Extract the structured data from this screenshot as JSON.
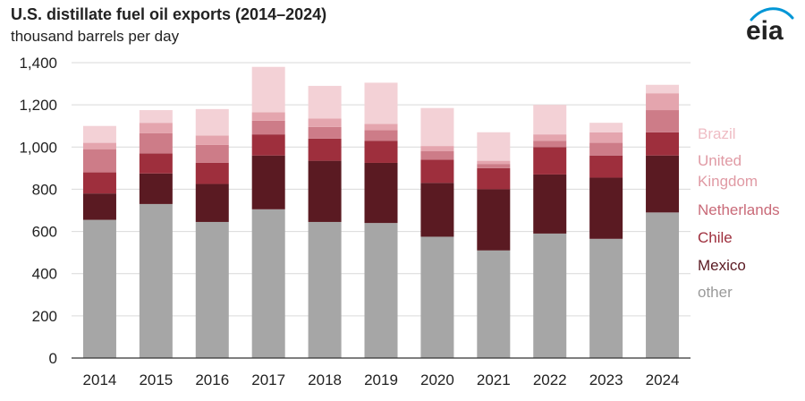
{
  "header": {
    "title": "U.S. distillate fuel oil exports (2014–2024)",
    "subtitle": "thousand barrels per day",
    "logo_text": "eia"
  },
  "chart_data": {
    "type": "bar",
    "stacked": true,
    "title": "U.S. distillate fuel oil exports (2014–2024)",
    "ylabel": "thousand barrels per day",
    "xlabel": "",
    "ylim": [
      0,
      1400
    ],
    "yticks": [
      0,
      200,
      400,
      600,
      800,
      1000,
      1200,
      1400
    ],
    "ytick_labels": [
      "0",
      "200",
      "400",
      "600",
      "800",
      "1,000",
      "1,200",
      "1,400"
    ],
    "categories": [
      "2014",
      "2015",
      "2016",
      "2017",
      "2018",
      "2019",
      "2020",
      "2021",
      "2022",
      "2023",
      "2024"
    ],
    "series": [
      {
        "name": "other",
        "color": "#a6a6a6",
        "values": [
          655,
          730,
          645,
          705,
          645,
          640,
          575,
          510,
          590,
          565,
          690
        ]
      },
      {
        "name": "Mexico",
        "color": "#5a1a22",
        "values": [
          125,
          145,
          180,
          255,
          290,
          285,
          255,
          290,
          280,
          290,
          270
        ]
      },
      {
        "name": "Chile",
        "color": "#9e2f3d",
        "values": [
          100,
          95,
          100,
          100,
          105,
          105,
          110,
          100,
          130,
          105,
          110
        ]
      },
      {
        "name": "Netherlands",
        "color": "#cd7c88",
        "values": [
          110,
          95,
          85,
          65,
          55,
          50,
          40,
          20,
          30,
          60,
          105
        ]
      },
      {
        "name": "United Kingdom",
        "color": "#e4a5ae",
        "values": [
          30,
          50,
          45,
          40,
          40,
          30,
          25,
          15,
          30,
          50,
          80
        ]
      },
      {
        "name": "Brazil",
        "color": "#f3d1d6",
        "values": [
          80,
          60,
          125,
          215,
          155,
          195,
          180,
          135,
          140,
          45,
          40
        ]
      }
    ],
    "legend": {
      "placement": "right",
      "order": [
        "Brazil",
        "United Kingdom",
        "Netherlands",
        "Chile",
        "Mexico",
        "other"
      ],
      "labels": {
        "Brazil": [
          "Brazil"
        ],
        "United Kingdom": [
          "United",
          "Kingdom"
        ],
        "Netherlands": [
          "Netherlands"
        ],
        "Chile": [
          "Chile"
        ],
        "Mexico": [
          "Mexico"
        ],
        "other": [
          "other"
        ]
      }
    },
    "grid": true
  }
}
